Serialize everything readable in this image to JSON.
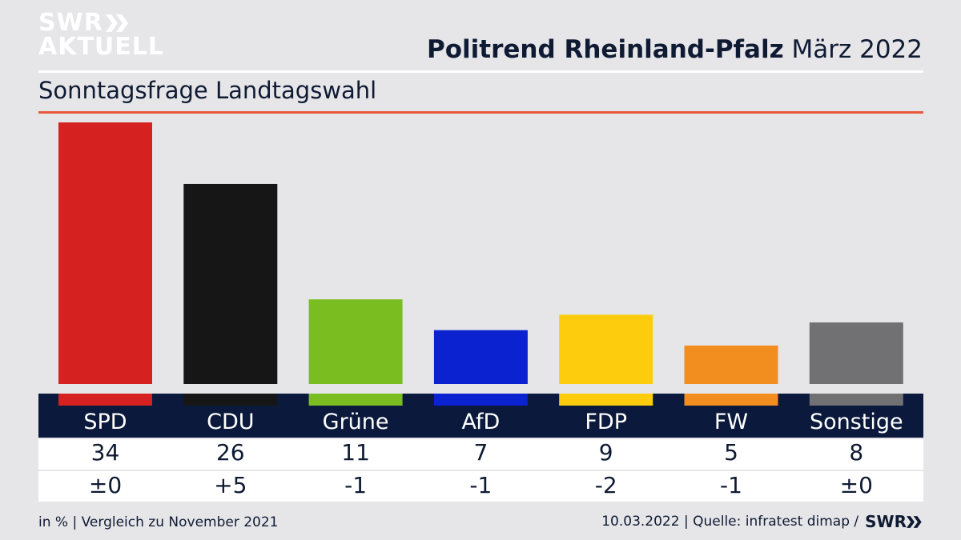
{
  "brand": {
    "logo_line1": "SWR",
    "logo_line2": "AKTUELL",
    "footer_logo": "SWR"
  },
  "header": {
    "title_strong": "Politrend Rheinland-Pfalz",
    "title_light": "März 2022",
    "subtitle": "Sonntagsfrage Landtagswahl"
  },
  "chart_data": {
    "type": "bar",
    "categories": [
      "SPD",
      "CDU",
      "Grüne",
      "AfD",
      "FDP",
      "FW",
      "Sonstige"
    ],
    "values": [
      34,
      26,
      11,
      7,
      9,
      5,
      8
    ],
    "changes": [
      "±0",
      "+5",
      "-1",
      "-1",
      "-2",
      "-1",
      "±0"
    ],
    "colors": [
      "#d52220",
      "#161616",
      "#7abd20",
      "#0a22cf",
      "#fdcc0d",
      "#f28e1f",
      "#717173"
    ],
    "unit": "in %",
    "comparison": "Vergleich zu November 2021",
    "ylim": [
      0,
      34
    ]
  },
  "footer": {
    "left_unit": "in %",
    "left_comparison": "Vergleich zu November 2021",
    "date": "10.03.2022",
    "source": "Quelle: infratest dimap /"
  }
}
